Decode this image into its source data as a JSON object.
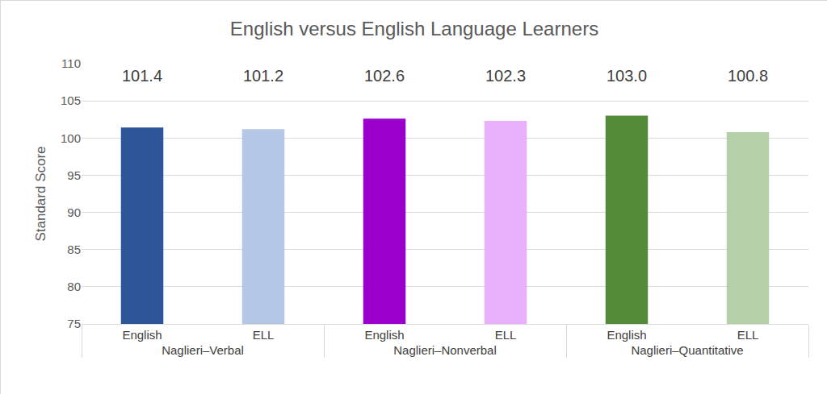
{
  "chart_data": {
    "type": "bar",
    "title": "English versus English Language Learners",
    "ylabel": "Standard Score",
    "categories": [
      "English",
      "ELL",
      "English",
      "ELL",
      "English",
      "ELL"
    ],
    "category_groups": [
      "Naglieri–Verbal",
      "Naglieri–Verbal",
      "Naglieri–Nonverbal",
      "Naglieri–Nonverbal",
      "Naglieri–Quantitative",
      "Naglieri–Quantitative"
    ],
    "values": [
      101.4,
      101.2,
      102.6,
      102.3,
      103.0,
      100.8
    ],
    "value_labels": [
      "101.4",
      "101.2",
      "102.6",
      "102.3",
      "103.0",
      "100.8"
    ],
    "colors": [
      "#2e5597",
      "#b4c7e7",
      "#9900cc",
      "#e9b1fb",
      "#558b38",
      "#b5d0a8"
    ],
    "ylim": [
      75,
      110
    ],
    "yticks": [
      75,
      80,
      85,
      90,
      95,
      100,
      105,
      110
    ],
    "grid": true,
    "data_labels": true
  }
}
